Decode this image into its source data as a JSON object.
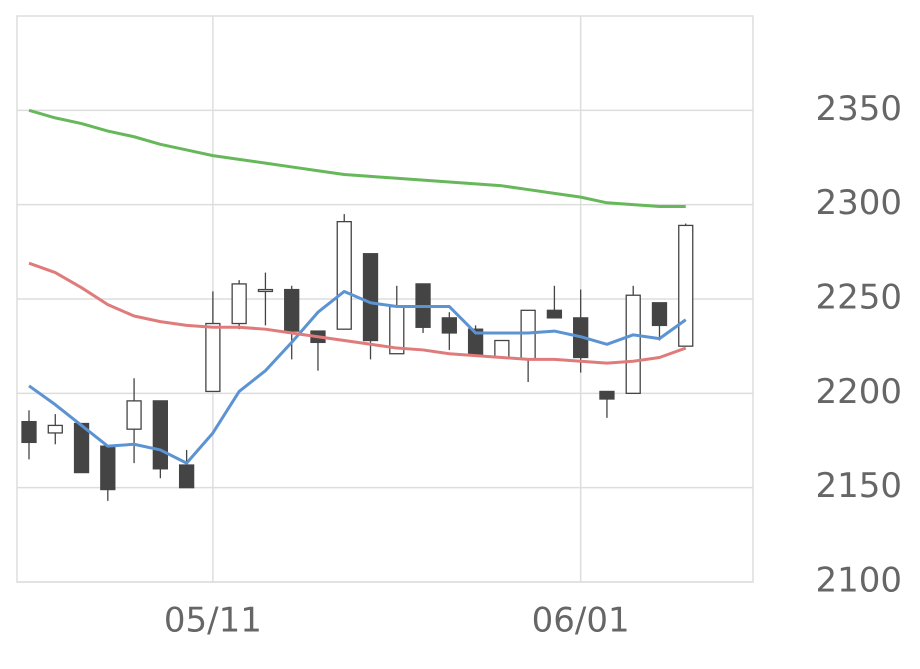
{
  "chart_data": {
    "type": "candlestick",
    "categories": [
      null,
      null,
      null,
      null,
      null,
      null,
      null,
      "05/11",
      null,
      null,
      null,
      null,
      null,
      null,
      null,
      null,
      null,
      null,
      null,
      null,
      null,
      "06/01",
      null,
      null,
      null,
      null
    ],
    "open": [
      2185,
      2179,
      2184,
      2172,
      2181,
      2196,
      2162,
      2201,
      2237,
      2254,
      2255,
      2233,
      2234,
      2274,
      2221,
      2258,
      2240,
      2234,
      2219,
      2218,
      2244,
      2240,
      2201,
      2200,
      2248,
      2225
    ],
    "high": [
      2191,
      2189,
      2184,
      2172,
      2208,
      2196,
      2170,
      2254,
      2260,
      2264,
      2257,
      2233,
      2295,
      2274,
      2257,
      2258,
      2243,
      2236,
      2228,
      2244,
      2257,
      2255,
      2201,
      2257,
      2248,
      2290
    ],
    "low": [
      2165,
      2173,
      2158,
      2143,
      2163,
      2155,
      2150,
      2201,
      2234,
      2236,
      2218,
      2212,
      2234,
      2218,
      2221,
      2232,
      2223,
      2220,
      2219,
      2206,
      2240,
      2211,
      2187,
      2200,
      2228,
      2225
    ],
    "close": [
      2174,
      2183,
      2158,
      2149,
      2196,
      2160,
      2150,
      2237,
      2258,
      2255,
      2233,
      2227,
      2291,
      2228,
      2246,
      2235,
      2232,
      2220,
      2228,
      2244,
      2240,
      2219,
      2197,
      2252,
      2236,
      2289
    ],
    "up_color": "#ffffff",
    "down_color": "#444444",
    "candle_edge": "#444444",
    "series": [
      {
        "color": "#5b93d3",
        "values": [
          2204,
          2194,
          2183,
          2172,
          2173,
          2170,
          2163,
          2179,
          2201,
          2212,
          2227,
          2243,
          2254,
          2248,
          2246,
          2246,
          2246,
          2232,
          2232,
          2232,
          2233,
          2230,
          2226,
          2231,
          2229,
          2239
        ]
      },
      {
        "color": "#e07b7b",
        "values": [
          2269,
          2264,
          2256,
          2247,
          2241,
          2238,
          2236,
          2235,
          2235,
          2234,
          2232,
          2230,
          2228,
          2226,
          2224,
          2223,
          2221,
          2220,
          2219,
          2218,
          2218,
          2217,
          2216,
          2217,
          2219,
          2224
        ]
      },
      {
        "color": "#66b85a",
        "values": [
          2350,
          2346,
          2343,
          2339,
          2336,
          2332,
          2329,
          2326,
          2324,
          2322,
          2320,
          2318,
          2316,
          2315,
          2314,
          2313,
          2312,
          2311,
          2310,
          2308,
          2306,
          2304,
          2301,
          2300,
          2299,
          2299
        ]
      }
    ],
    "ylim": [
      2100,
      2400
    ],
    "yticks": [
      2100,
      2150,
      2200,
      2250,
      2300,
      2350
    ],
    "grid": true
  }
}
